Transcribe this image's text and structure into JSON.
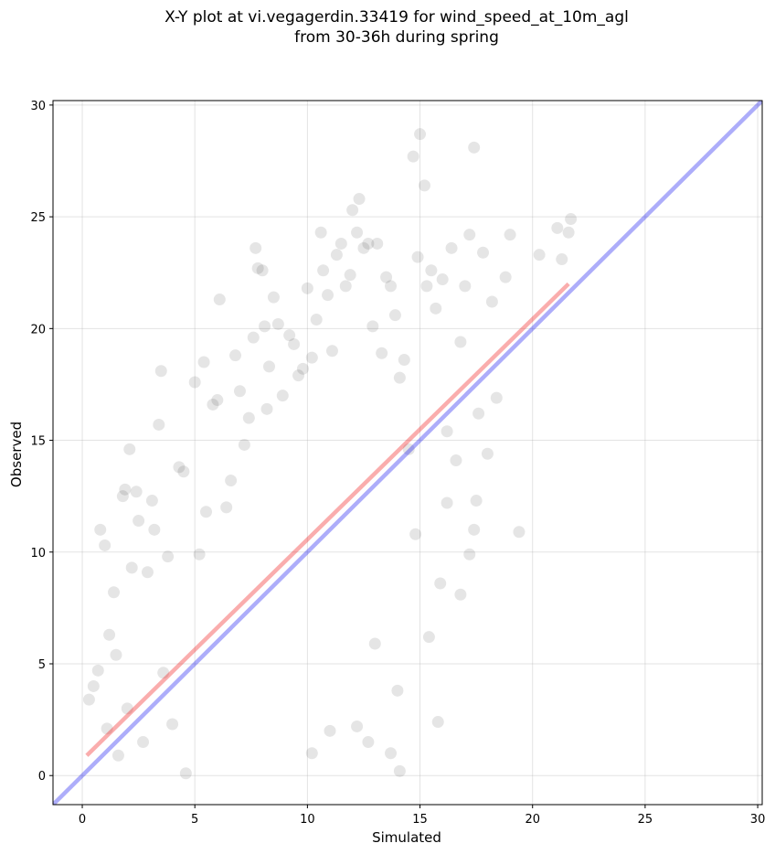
{
  "chart_data": {
    "type": "scatter",
    "title": "X-Y plot at vi.vegagerdin.33419 for wind_speed_at_10m_agl",
    "subtitle": "from 30-36h during spring",
    "xlabel": "Simulated",
    "ylabel": "Observed",
    "xlim": [
      -1.3,
      30.2
    ],
    "ylim": [
      -1.3,
      30.2
    ],
    "xticks": [
      0,
      5,
      10,
      15,
      20,
      25,
      30
    ],
    "yticks": [
      0,
      5,
      10,
      15,
      20,
      25,
      30
    ],
    "grid": true,
    "point_color": "#000000",
    "point_alpha": 0.1,
    "series": [
      {
        "type": "scatter",
        "points": [
          [
            0.3,
            3.4
          ],
          [
            0.5,
            4.0
          ],
          [
            0.7,
            4.7
          ],
          [
            0.8,
            11.0
          ],
          [
            1.0,
            10.3
          ],
          [
            1.1,
            2.1
          ],
          [
            1.2,
            6.3
          ],
          [
            1.4,
            8.2
          ],
          [
            1.5,
            5.4
          ],
          [
            1.6,
            0.9
          ],
          [
            1.8,
            12.5
          ],
          [
            1.9,
            12.8
          ],
          [
            2.0,
            3.0
          ],
          [
            2.1,
            14.6
          ],
          [
            2.2,
            9.3
          ],
          [
            2.4,
            12.7
          ],
          [
            2.5,
            11.4
          ],
          [
            2.7,
            1.5
          ],
          [
            2.9,
            9.1
          ],
          [
            3.1,
            12.3
          ],
          [
            3.2,
            11.0
          ],
          [
            3.4,
            15.7
          ],
          [
            3.5,
            18.1
          ],
          [
            3.6,
            4.6
          ],
          [
            3.8,
            9.8
          ],
          [
            4.0,
            2.3
          ],
          [
            4.3,
            13.8
          ],
          [
            4.5,
            13.6
          ],
          [
            4.6,
            0.1
          ],
          [
            5.0,
            17.6
          ],
          [
            5.2,
            9.9
          ],
          [
            5.4,
            18.5
          ],
          [
            5.5,
            11.8
          ],
          [
            5.8,
            16.6
          ],
          [
            6.0,
            16.8
          ],
          [
            6.1,
            21.3
          ],
          [
            6.4,
            12.0
          ],
          [
            6.6,
            13.2
          ],
          [
            6.8,
            18.8
          ],
          [
            7.0,
            17.2
          ],
          [
            7.2,
            14.8
          ],
          [
            7.4,
            16.0
          ],
          [
            7.6,
            19.6
          ],
          [
            7.7,
            23.6
          ],
          [
            7.8,
            22.7
          ],
          [
            8.0,
            22.6
          ],
          [
            8.1,
            20.1
          ],
          [
            8.2,
            16.4
          ],
          [
            8.3,
            18.3
          ],
          [
            8.5,
            21.4
          ],
          [
            8.7,
            20.2
          ],
          [
            8.9,
            17.0
          ],
          [
            9.2,
            19.7
          ],
          [
            9.4,
            19.3
          ],
          [
            9.6,
            17.9
          ],
          [
            9.8,
            18.2
          ],
          [
            10.0,
            21.8
          ],
          [
            10.2,
            18.7
          ],
          [
            10.4,
            20.4
          ],
          [
            10.6,
            24.3
          ],
          [
            10.7,
            22.6
          ],
          [
            10.9,
            21.5
          ],
          [
            11.1,
            19.0
          ],
          [
            11.3,
            23.3
          ],
          [
            11.5,
            23.8
          ],
          [
            11.7,
            21.9
          ],
          [
            11.9,
            22.4
          ],
          [
            12.0,
            25.3
          ],
          [
            12.2,
            24.3
          ],
          [
            12.3,
            25.8
          ],
          [
            12.5,
            23.6
          ],
          [
            12.7,
            23.8
          ],
          [
            12.9,
            20.1
          ],
          [
            13.1,
            23.8
          ],
          [
            13.3,
            18.9
          ],
          [
            13.5,
            22.3
          ],
          [
            13.7,
            21.9
          ],
          [
            13.9,
            20.6
          ],
          [
            14.1,
            17.8
          ],
          [
            14.3,
            18.6
          ],
          [
            14.5,
            14.6
          ],
          [
            14.7,
            27.7
          ],
          [
            14.9,
            23.2
          ],
          [
            15.0,
            28.7
          ],
          [
            15.2,
            26.4
          ],
          [
            15.3,
            21.9
          ],
          [
            15.5,
            22.6
          ],
          [
            15.7,
            20.9
          ],
          [
            16.0,
            22.2
          ],
          [
            16.2,
            15.4
          ],
          [
            16.4,
            23.6
          ],
          [
            16.6,
            14.1
          ],
          [
            16.8,
            19.4
          ],
          [
            17.0,
            21.9
          ],
          [
            17.2,
            24.2
          ],
          [
            17.4,
            28.1
          ],
          [
            17.6,
            16.2
          ],
          [
            17.8,
            23.4
          ],
          [
            18.0,
            14.4
          ],
          [
            18.2,
            21.2
          ],
          [
            18.4,
            16.9
          ],
          [
            18.8,
            22.3
          ],
          [
            19.0,
            24.2
          ],
          [
            19.4,
            10.9
          ],
          [
            20.3,
            23.3
          ],
          [
            21.1,
            24.5
          ],
          [
            21.3,
            23.1
          ],
          [
            21.6,
            24.3
          ],
          [
            21.7,
            24.9
          ],
          [
            15.8,
            2.4
          ],
          [
            14.1,
            0.2
          ],
          [
            13.7,
            1.0
          ],
          [
            13.0,
            5.9
          ],
          [
            14.0,
            3.8
          ],
          [
            15.4,
            6.2
          ],
          [
            16.2,
            12.2
          ],
          [
            16.8,
            8.1
          ],
          [
            17.2,
            9.9
          ],
          [
            17.4,
            11.0
          ],
          [
            17.5,
            12.3
          ],
          [
            15.9,
            8.6
          ],
          [
            14.8,
            10.8
          ],
          [
            12.7,
            1.5
          ],
          [
            12.2,
            2.2
          ],
          [
            11.0,
            2.0
          ],
          [
            10.2,
            1.0
          ]
        ]
      }
    ],
    "lines": [
      {
        "name": "",
        "color": "#0000ee",
        "alpha": 0.32,
        "x": [
          -1.3,
          30.2
        ],
        "y": [
          -1.3,
          30.2
        ]
      },
      {
        "name": "",
        "color": "#ee0000",
        "alpha": 0.32,
        "x": [
          0.2,
          21.6
        ],
        "y": [
          0.9,
          22.0
        ]
      }
    ]
  }
}
